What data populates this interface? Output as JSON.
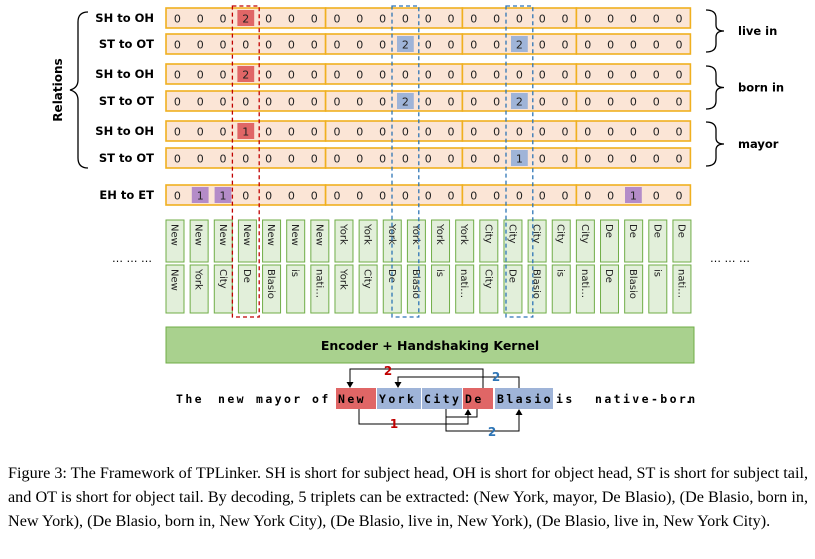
{
  "relations_title": "Relations",
  "matrix_rows": [
    {
      "label": "SH to OH",
      "values": [
        0,
        0,
        0,
        2,
        0,
        0,
        0,
        0,
        0,
        0,
        0,
        0,
        0,
        0,
        0,
        0,
        0,
        0,
        0,
        0,
        0,
        0,
        0
      ]
    },
    {
      "label": "ST to OT",
      "values": [
        0,
        0,
        0,
        0,
        0,
        0,
        0,
        0,
        0,
        0,
        2,
        0,
        0,
        0,
        0,
        2,
        0,
        0,
        0,
        0,
        0,
        0,
        0
      ]
    },
    {
      "label": "SH to OH",
      "values": [
        0,
        0,
        0,
        2,
        0,
        0,
        0,
        0,
        0,
        0,
        0,
        0,
        0,
        0,
        0,
        0,
        0,
        0,
        0,
        0,
        0,
        0,
        0
      ]
    },
    {
      "label": "ST to OT",
      "values": [
        0,
        0,
        0,
        0,
        0,
        0,
        0,
        0,
        0,
        0,
        2,
        0,
        0,
        0,
        0,
        2,
        0,
        0,
        0,
        0,
        0,
        0,
        0
      ]
    },
    {
      "label": "SH to OH",
      "values": [
        0,
        0,
        0,
        1,
        0,
        0,
        0,
        0,
        0,
        0,
        0,
        0,
        0,
        0,
        0,
        0,
        0,
        0,
        0,
        0,
        0,
        0,
        0
      ]
    },
    {
      "label": "ST to OT",
      "values": [
        0,
        0,
        0,
        0,
        0,
        0,
        0,
        0,
        0,
        0,
        0,
        0,
        0,
        0,
        0,
        1,
        0,
        0,
        0,
        0,
        0,
        0,
        0
      ]
    },
    {
      "label": "EH to ET",
      "values": [
        0,
        1,
        1,
        0,
        0,
        0,
        0,
        0,
        0,
        0,
        0,
        0,
        0,
        0,
        0,
        0,
        0,
        0,
        0,
        0,
        1,
        0,
        0
      ]
    }
  ],
  "relation_groups": [
    "live in",
    "born in",
    "mayor"
  ],
  "token_pairs": [
    [
      "New",
      "New"
    ],
    [
      "New",
      "York"
    ],
    [
      "New",
      "City"
    ],
    [
      "New",
      "De"
    ],
    [
      "New",
      "Blasio"
    ],
    [
      "New",
      "is"
    ],
    [
      "New",
      "nati…"
    ],
    [
      "York",
      "York"
    ],
    [
      "York",
      "City"
    ],
    [
      "York",
      "De"
    ],
    [
      "York",
      "Blasio"
    ],
    [
      "York",
      "is"
    ],
    [
      "York",
      "nati…"
    ],
    [
      "City",
      "City"
    ],
    [
      "City",
      "De"
    ],
    [
      "City",
      "Blasio"
    ],
    [
      "City",
      "is"
    ],
    [
      "City",
      "nati…"
    ],
    [
      "De",
      "De"
    ],
    [
      "De",
      "Blasio"
    ],
    [
      "De",
      "is"
    ],
    [
      "De",
      "nati…"
    ]
  ],
  "ellipsis_left": "… … …",
  "ellipsis_right": "… … …",
  "encoder_label": "Encoder + Handshaking Kernel",
  "sentence_tokens": [
    "The",
    "new",
    "mayor",
    "of",
    "New",
    "York",
    "City",
    "De",
    "Blasio",
    "is",
    "native-born",
    "."
  ],
  "arc_labels": {
    "top_left": "2",
    "top_right": "2",
    "bottom_left": "1",
    "bottom_right": "2"
  },
  "caption": "Figure 3: The Framework of TPLinker. SH is short for subject head, OH is short for object head, ST is short for subject tail, and OT is short for object tail. By decoding, 5 triplets can be extracted: (New York, mayor, De Blasio), (De Blasio, born in, New York), (De Blasio, born in, New York City), (De Blasio, live in, New York), (De Blasio, live in, New York City).",
  "colors": {
    "row_fill": "#fbe5d6",
    "row_border": "#f0b020",
    "red": "#e06666",
    "blue": "#9fb4d8",
    "purple": "#b48cc8",
    "green": "#e2efda",
    "green_border": "#70ad47",
    "encoder_fill": "#a9d18e",
    "arc_red": "#c00000",
    "arc_blue": "#2e75b6"
  }
}
